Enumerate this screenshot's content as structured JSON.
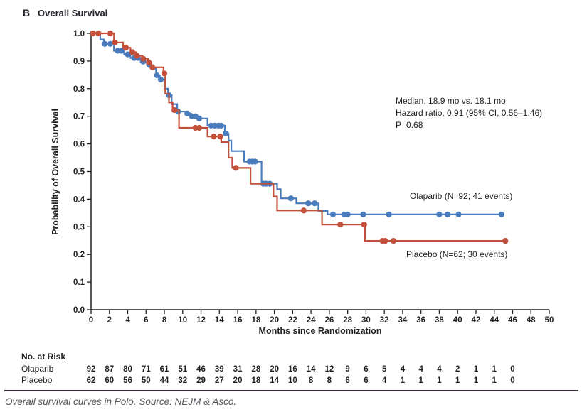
{
  "title": {
    "panel_letter": "B",
    "text": "Overall Survival"
  },
  "annotation": {
    "line1": "Median, 18.9 mo vs. 18.1 mo",
    "line2": "Hazard ratio, 0.91 (95% CI, 0.56–1.46)",
    "line3": "P=0.68"
  },
  "axes": {
    "x_title": "Months since Randomization",
    "y_title": "Probability of Overall Survival"
  },
  "caption": "Overall survival curves in Polo. Source: NEJM & Asco.",
  "colors": {
    "olaparib": "#4a7cbd",
    "placebo": "#c2503a",
    "axis": "#231f20",
    "text": "#231f20",
    "rule": "#342637",
    "caption": "#54565b"
  },
  "risk_table": {
    "header": "No. at Risk",
    "rows": [
      {
        "label": "Olaparib",
        "values": [
          92,
          87,
          80,
          71,
          61,
          51,
          46,
          39,
          31,
          28,
          20,
          16,
          14,
          12,
          9,
          6,
          5,
          4,
          4,
          4,
          2,
          1,
          1,
          0
        ]
      },
      {
        "label": "Placebo",
        "values": [
          62,
          60,
          56,
          50,
          44,
          32,
          29,
          27,
          20,
          18,
          14,
          10,
          8,
          8,
          6,
          6,
          4,
          1,
          1,
          1,
          1,
          1,
          1,
          0
        ]
      }
    ]
  },
  "chart_data": {
    "type": "line",
    "subtype": "kaplan-meier-step",
    "title": "Overall Survival",
    "xlabel": "Months since Randomization",
    "ylabel": "Probability of Overall Survival",
    "xlim": [
      0,
      50
    ],
    "ylim": [
      0.0,
      1.0
    ],
    "x_ticks": [
      0,
      2,
      4,
      6,
      8,
      10,
      12,
      14,
      16,
      18,
      20,
      22,
      24,
      26,
      28,
      30,
      32,
      34,
      36,
      38,
      40,
      42,
      44,
      46,
      48,
      50
    ],
    "y_ticks": [
      0.0,
      0.1,
      0.2,
      0.3,
      0.4,
      0.5,
      0.6,
      0.7,
      0.8,
      0.9,
      1.0
    ],
    "grid": false,
    "legend_position": "inline-labels",
    "annotations": [
      "Median, 18.9 mo vs. 18.1 mo",
      "Hazard ratio, 0.91 (95% CI, 0.56–1.46)",
      "P=0.68"
    ],
    "series": [
      {
        "name": "Olaparib (N=92; 41 events)",
        "color": "#4a7cbd",
        "n": 92,
        "events": 41,
        "median_months": 18.9,
        "end_month": 44.8,
        "steps": [
          [
            0,
            1.0
          ],
          [
            1.0,
            0.978
          ],
          [
            1.4,
            0.962
          ],
          [
            2.5,
            0.937
          ],
          [
            3.6,
            0.924
          ],
          [
            4.3,
            0.911
          ],
          [
            5.4,
            0.898
          ],
          [
            6.1,
            0.885
          ],
          [
            6.8,
            0.872
          ],
          [
            7.1,
            0.848
          ],
          [
            7.5,
            0.833
          ],
          [
            8.0,
            0.8
          ],
          [
            8.4,
            0.776
          ],
          [
            8.8,
            0.744
          ],
          [
            9.4,
            0.717
          ],
          [
            10.3,
            0.71
          ],
          [
            10.9,
            0.7
          ],
          [
            11.6,
            0.692
          ],
          [
            12.7,
            0.666
          ],
          [
            14.6,
            0.638
          ],
          [
            15.0,
            0.612
          ],
          [
            15.3,
            0.574
          ],
          [
            16.7,
            0.536
          ],
          [
            18.6,
            0.456
          ],
          [
            20.3,
            0.436
          ],
          [
            20.7,
            0.403
          ],
          [
            22.4,
            0.385
          ],
          [
            24.8,
            0.357
          ],
          [
            25.8,
            0.345
          ]
        ],
        "censor_marks": [
          1.5,
          2.1,
          2.9,
          3.3,
          4.0,
          4.7,
          5.1,
          5.7,
          6.4,
          7.2,
          7.6,
          8.5,
          9.5,
          10.5,
          11.0,
          11.4,
          11.8,
          13.1,
          13.5,
          13.9,
          14.2,
          14.7,
          17.3,
          17.6,
          17.9,
          18.8,
          19.1,
          19.5,
          21.8,
          23.7,
          24.4,
          26.4,
          27.6,
          28.0,
          29.7,
          32.5,
          38.0,
          38.9,
          40.1,
          44.8
        ]
      },
      {
        "name": "Placebo (N=62; 30 events)",
        "color": "#c2503a",
        "n": 62,
        "events": 30,
        "median_months": 18.1,
        "end_month": 45.2,
        "steps": [
          [
            0,
            1.0
          ],
          [
            2.5,
            0.967
          ],
          [
            3.5,
            0.948
          ],
          [
            4.3,
            0.932
          ],
          [
            4.9,
            0.919
          ],
          [
            5.6,
            0.908
          ],
          [
            6.2,
            0.895
          ],
          [
            6.6,
            0.877
          ],
          [
            7.9,
            0.855
          ],
          [
            8.1,
            0.782
          ],
          [
            8.5,
            0.75
          ],
          [
            8.9,
            0.722
          ],
          [
            9.6,
            0.658
          ],
          [
            12.7,
            0.627
          ],
          [
            14.2,
            0.607
          ],
          [
            15.0,
            0.55
          ],
          [
            15.4,
            0.513
          ],
          [
            17.4,
            0.456
          ],
          [
            19.9,
            0.41
          ],
          [
            20.3,
            0.359
          ],
          [
            25.2,
            0.308
          ],
          [
            29.9,
            0.249
          ]
        ],
        "censor_marks": [
          0.2,
          0.8,
          2.1,
          2.6,
          3.8,
          4.5,
          5.0,
          5.7,
          6.3,
          6.7,
          8.0,
          9.1,
          11.4,
          11.8,
          13.4,
          14.1,
          15.8,
          23.2,
          27.2,
          29.8,
          31.8,
          32.1,
          33.0,
          45.2
        ]
      }
    ],
    "risk_table": {
      "months": [
        0,
        2,
        4,
        6,
        8,
        10,
        12,
        14,
        16,
        18,
        20,
        22,
        24,
        26,
        28,
        30,
        32,
        34,
        36,
        38,
        40,
        42,
        44,
        46
      ],
      "rows": [
        {
          "label": "Olaparib",
          "values": [
            92,
            87,
            80,
            71,
            61,
            51,
            46,
            39,
            31,
            28,
            20,
            16,
            14,
            12,
            9,
            6,
            5,
            4,
            4,
            4,
            2,
            1,
            1,
            0
          ]
        },
        {
          "label": "Placebo",
          "values": [
            62,
            60,
            56,
            50,
            44,
            32,
            29,
            27,
            20,
            18,
            14,
            10,
            8,
            8,
            6,
            6,
            4,
            1,
            1,
            1,
            1,
            1,
            1,
            0
          ]
        }
      ]
    }
  }
}
